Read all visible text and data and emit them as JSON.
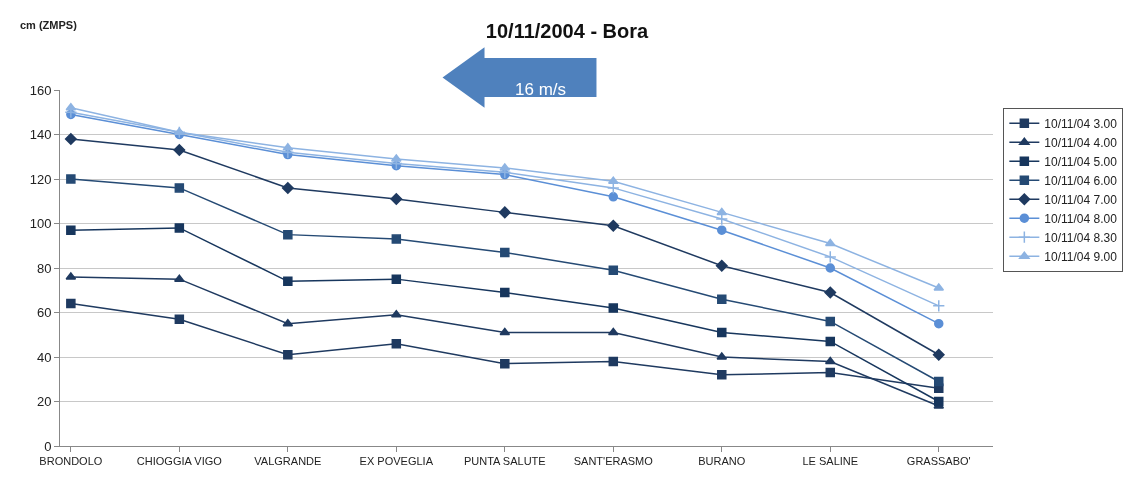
{
  "chart_data": {
    "type": "line",
    "title": "10/11/2004 - Bora",
    "ylabel": "cm (ZMPS)",
    "categories": [
      "BRONDOLO",
      "CHIOGGIA VIGO",
      "VALGRANDE",
      "EX POVEGLIA",
      "PUNTA SALUTE",
      "SANT'ERASMO",
      "BURANO",
      "LE SALINE",
      "GRASSABO'"
    ],
    "series": [
      {
        "name": "10/11/04 3.00",
        "color": "#1f3a60",
        "marker": "square",
        "values": [
          64,
          57,
          41,
          46,
          37,
          38,
          32,
          33,
          26
        ]
      },
      {
        "name": "10/11/04 4.00",
        "color": "#1f3a60",
        "marker": "triangle",
        "values": [
          76,
          75,
          55,
          59,
          51,
          51,
          40,
          38,
          18
        ]
      },
      {
        "name": "10/11/04 5.00",
        "color": "#17365d",
        "marker": "square",
        "values": [
          97,
          98,
          74,
          75,
          69,
          62,
          51,
          47,
          20
        ]
      },
      {
        "name": "10/11/04 6.00",
        "color": "#254a74",
        "marker": "square",
        "values": [
          120,
          116,
          95,
          93,
          87,
          79,
          66,
          56,
          29
        ]
      },
      {
        "name": "10/11/04 7.00",
        "color": "#1f3a60",
        "marker": "diamond",
        "values": [
          138,
          133,
          116,
          111,
          105,
          99,
          81,
          69,
          41
        ]
      },
      {
        "name": "10/11/04 8.00",
        "color": "#5b8fd6",
        "marker": "circle",
        "values": [
          149,
          140,
          131,
          126,
          122,
          112,
          97,
          80,
          55
        ]
      },
      {
        "name": "10/11/04 8.30",
        "color": "#8db3e2",
        "marker": "cross",
        "values": [
          150,
          141,
          132,
          127,
          123,
          116,
          102,
          85,
          63
        ]
      },
      {
        "name": "10/11/04 9.00",
        "color": "#8db3e2",
        "marker": "triangle",
        "values": [
          152,
          141,
          134,
          129,
          125,
          119,
          105,
          91,
          71
        ]
      }
    ],
    "ylim": [
      0,
      160
    ],
    "yticks": [
      0,
      20,
      40,
      60,
      80,
      100,
      120,
      140,
      160
    ],
    "grid": "y",
    "legend": "right",
    "line_style": "solid",
    "annotations": [
      "16 m/s"
    ]
  }
}
